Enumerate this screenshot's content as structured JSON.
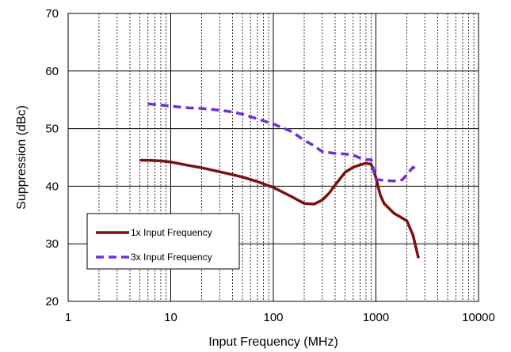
{
  "chart_data": {
    "type": "line",
    "title": "",
    "xlabel": "Input Frequency (MHz)",
    "ylabel": "Suppression (dBc)",
    "x_scale": "log",
    "xlim": [
      1,
      10000
    ],
    "ylim": [
      20,
      70
    ],
    "x_ticks": [
      "1",
      "10",
      "100",
      "1000",
      "10000"
    ],
    "y_ticks": [
      "20",
      "30",
      "40",
      "50",
      "60",
      "70"
    ],
    "grid": true,
    "legend_position": "lower-left",
    "series": [
      {
        "name": "1x Input Frequency",
        "color": "#7a1010",
        "dash": "solid",
        "x": [
          5,
          6,
          8,
          10,
          15,
          20,
          30,
          40,
          50,
          70,
          100,
          150,
          200,
          250,
          300,
          350,
          400,
          500,
          600,
          700,
          800,
          900,
          1000,
          1100,
          1200,
          1500,
          2000,
          2300,
          2600
        ],
        "y": [
          44.5,
          44.5,
          44.4,
          44.2,
          43.6,
          43.2,
          42.5,
          42.0,
          41.6,
          40.8,
          39.8,
          38.2,
          37.0,
          36.9,
          37.6,
          38.8,
          40.2,
          42.4,
          43.3,
          43.7,
          44.0,
          43.8,
          41.5,
          38.5,
          37.0,
          35.3,
          34.0,
          31.5,
          27.5
        ]
      },
      {
        "name": "3x Input Frequency",
        "color": "#7030d8",
        "dash": "dashed",
        "x": [
          6,
          8,
          10,
          15,
          20,
          30,
          40,
          50,
          70,
          100,
          150,
          200,
          250,
          300,
          400,
          500,
          600,
          700,
          800,
          900,
          1000,
          1200,
          1500,
          1800,
          2000,
          2300,
          2600
        ],
        "y": [
          54.3,
          54.1,
          53.9,
          53.6,
          53.5,
          53.2,
          52.9,
          52.5,
          51.7,
          50.8,
          49.5,
          48.0,
          47.0,
          46.0,
          45.7,
          45.6,
          45.4,
          44.9,
          44.6,
          44.6,
          41.2,
          41.0,
          40.9,
          41.1,
          42.0,
          43.3,
          42.6
        ]
      }
    ]
  }
}
